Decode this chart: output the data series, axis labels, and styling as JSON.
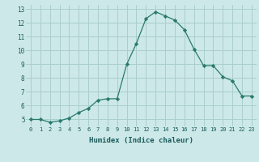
{
  "x": [
    0,
    1,
    2,
    3,
    4,
    5,
    6,
    7,
    8,
    9,
    10,
    11,
    12,
    13,
    14,
    15,
    16,
    17,
    18,
    19,
    20,
    21,
    22,
    23
  ],
  "y": [
    5.0,
    5.0,
    4.8,
    4.9,
    5.1,
    5.5,
    5.8,
    6.4,
    6.5,
    6.5,
    9.0,
    10.5,
    12.3,
    12.8,
    12.5,
    12.2,
    11.5,
    10.1,
    8.9,
    8.9,
    8.1,
    7.8,
    6.7,
    6.7
  ],
  "title": "",
  "xlabel": "Humidex (Indice chaleur)",
  "ylabel": "",
  "xlim": [
    -0.5,
    23.5
  ],
  "ylim": [
    4.5,
    13.3
  ],
  "yticks": [
    5,
    6,
    7,
    8,
    9,
    10,
    11,
    12,
    13
  ],
  "xticks": [
    0,
    1,
    2,
    3,
    4,
    5,
    6,
    7,
    8,
    9,
    10,
    11,
    12,
    13,
    14,
    15,
    16,
    17,
    18,
    19,
    20,
    21,
    22,
    23
  ],
  "xtick_labels": [
    "0",
    "1",
    "2",
    "3",
    "4",
    "5",
    "6",
    "7",
    "8",
    "9",
    "10",
    "11",
    "12",
    "13",
    "14",
    "15",
    "16",
    "17",
    "18",
    "19",
    "20",
    "21",
    "22",
    "23"
  ],
  "line_color": "#2a7a6e",
  "marker": "D",
  "marker_size": 2.2,
  "bg_color": "#cce8e8",
  "grid_color": "#aacece",
  "axes_bg": "#cce8e8"
}
